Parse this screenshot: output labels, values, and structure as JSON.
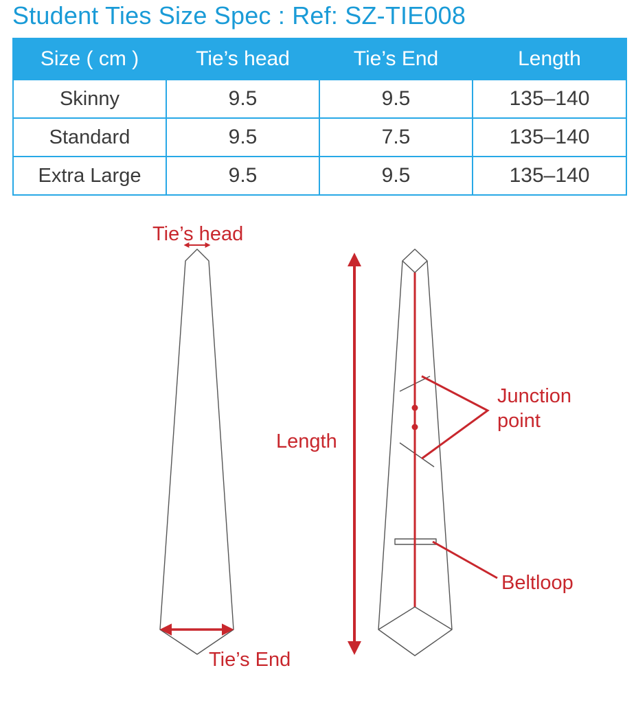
{
  "title": "Student Ties Size Spec :  Ref: SZ-TIE008",
  "table": {
    "headers": [
      "Size ( cm )",
      "Tie’s head",
      "Tie’s End",
      "Length"
    ],
    "rows": [
      [
        "Skinny",
        "9.5",
        "9.5",
        "135–140"
      ],
      [
        "Standard",
        "9.5",
        "7.5",
        "135–140"
      ],
      [
        "Extra Large",
        "9.5",
        "9.5",
        "135–140"
      ]
    ]
  },
  "diagram": {
    "ties_head_label": "Tie’s head",
    "ties_end_label": "Tie’s End",
    "length_label": "Length",
    "junction_label_line1": "Junction",
    "junction_label_line2": "point",
    "beltloop_label": "Beltloop"
  },
  "colors": {
    "header_blue": "#27a8e6",
    "title_blue": "#1a9bd7",
    "annotation_red": "#c8272d",
    "outline_gray": "#555555"
  }
}
